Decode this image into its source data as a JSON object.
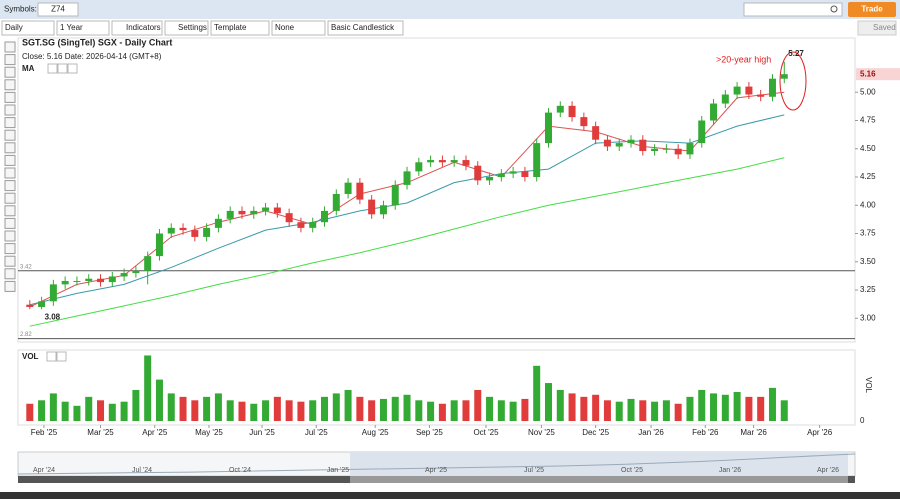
{
  "toolbar": {
    "symbols_label": "Symbols:",
    "symbol": "Z74",
    "trade": "Trade",
    "interval": "Daily",
    "range": "1 Year",
    "indicators": "Indicators",
    "settings": "Settings",
    "template": "Template",
    "none": "None",
    "chart_style": "Basic Candlestick",
    "saved": "Saved"
  },
  "chart_data": [
    {
      "type": "candlestick",
      "title": "SGT.SG (SingTel) SGX - Daily Chart",
      "info": "Close: 5.16  Date: 2026-04-14 (GMT+8)",
      "indicator_label": "MA",
      "x": [
        0,
        1,
        2,
        3,
        4,
        5,
        6,
        7,
        8,
        9,
        10,
        11,
        12,
        13,
        14,
        15,
        16,
        17,
        18,
        19,
        20,
        21,
        22,
        23,
        24,
        25,
        26,
        27,
        28,
        29,
        30,
        31,
        32,
        33,
        34,
        35,
        36,
        37,
        38,
        39,
        40,
        41,
        42,
        43,
        44,
        45,
        46,
        47,
        48,
        49,
        50,
        51,
        52,
        53,
        54,
        55,
        56,
        57,
        58,
        59,
        60,
        61,
        62,
        63,
        64
      ],
      "open": [
        3.12,
        3.1,
        3.15,
        3.3,
        3.33,
        3.33,
        3.35,
        3.32,
        3.37,
        3.4,
        3.42,
        3.55,
        3.75,
        3.8,
        3.78,
        3.72,
        3.8,
        3.88,
        3.95,
        3.92,
        3.95,
        3.98,
        3.93,
        3.85,
        3.8,
        3.85,
        3.95,
        4.1,
        4.2,
        4.05,
        3.92,
        4.0,
        4.18,
        4.3,
        4.38,
        4.4,
        4.38,
        4.4,
        4.35,
        4.22,
        4.25,
        4.28,
        4.3,
        4.25,
        4.55,
        4.82,
        4.88,
        4.78,
        4.7,
        4.58,
        4.52,
        4.55,
        4.58,
        4.48,
        4.5,
        4.5,
        4.45,
        4.55,
        4.75,
        4.9,
        4.98,
        5.05,
        4.98,
        4.96,
        5.12
      ],
      "high": [
        3.16,
        3.19,
        3.34,
        3.37,
        3.37,
        3.39,
        3.39,
        3.41,
        3.44,
        3.46,
        3.59,
        3.79,
        3.84,
        3.84,
        3.82,
        3.84,
        3.92,
        3.99,
        3.99,
        3.99,
        4.02,
        4.02,
        3.97,
        3.89,
        3.89,
        3.99,
        4.14,
        4.24,
        4.24,
        4.09,
        4.04,
        4.22,
        4.34,
        4.42,
        4.44,
        4.44,
        4.44,
        4.44,
        4.39,
        4.29,
        4.32,
        4.34,
        4.34,
        4.59,
        4.86,
        4.92,
        4.92,
        4.82,
        4.74,
        4.62,
        4.59,
        4.62,
        4.62,
        4.54,
        4.54,
        4.54,
        4.59,
        4.79,
        4.94,
        5.02,
        5.09,
        5.09,
        5.02,
        5.16,
        5.27
      ],
      "low": [
        3.08,
        3.08,
        3.11,
        3.26,
        3.29,
        3.29,
        3.28,
        3.28,
        3.33,
        3.36,
        3.3,
        3.51,
        3.71,
        3.74,
        3.68,
        3.68,
        3.76,
        3.84,
        3.88,
        3.88,
        3.91,
        3.89,
        3.81,
        3.76,
        3.76,
        3.81,
        3.91,
        4.06,
        4.01,
        3.88,
        3.88,
        3.96,
        4.14,
        4.26,
        4.34,
        4.34,
        4.34,
        4.31,
        4.18,
        4.18,
        4.21,
        4.24,
        4.21,
        4.21,
        4.51,
        4.78,
        4.74,
        4.66,
        4.54,
        4.48,
        4.48,
        4.51,
        4.44,
        4.44,
        4.46,
        4.41,
        4.41,
        4.51,
        4.71,
        4.86,
        4.94,
        4.94,
        4.92,
        4.92,
        5.08
      ],
      "close": [
        3.1,
        3.15,
        3.3,
        3.33,
        3.33,
        3.35,
        3.32,
        3.37,
        3.4,
        3.42,
        3.55,
        3.75,
        3.8,
        3.78,
        3.72,
        3.8,
        3.88,
        3.95,
        3.92,
        3.95,
        3.98,
        3.93,
        3.85,
        3.8,
        3.85,
        3.95,
        4.1,
        4.2,
        4.05,
        3.92,
        4.0,
        4.18,
        4.3,
        4.38,
        4.4,
        4.38,
        4.4,
        4.35,
        4.22,
        4.25,
        4.28,
        4.3,
        4.25,
        4.55,
        4.82,
        4.88,
        4.78,
        4.7,
        4.58,
        4.52,
        4.55,
        4.58,
        4.48,
        4.5,
        4.5,
        4.45,
        4.55,
        4.75,
        4.9,
        4.98,
        5.05,
        4.98,
        4.96,
        5.12,
        5.16
      ],
      "up_color": "#33aa33",
      "down_color": "#e03c3c",
      "series": [
        {
          "color": "#d9534f",
          "x": [
            0,
            4,
            8,
            12,
            16,
            20,
            24,
            28,
            32,
            36,
            40,
            44,
            48,
            52,
            56,
            60,
            64
          ],
          "values": [
            3.1,
            3.3,
            3.38,
            3.72,
            3.85,
            3.95,
            3.83,
            4.1,
            4.2,
            4.38,
            4.25,
            4.7,
            4.65,
            4.52,
            4.48,
            4.95,
            5.0
          ]
        },
        {
          "color": "#3a9ba8",
          "x": [
            0,
            4,
            8,
            12,
            16,
            20,
            24,
            28,
            32,
            36,
            40,
            44,
            48,
            52,
            56,
            60,
            64
          ],
          "values": [
            3.12,
            3.22,
            3.3,
            3.45,
            3.62,
            3.78,
            3.85,
            3.95,
            4.02,
            4.2,
            4.28,
            4.32,
            4.55,
            4.57,
            4.55,
            4.7,
            4.8
          ]
        },
        {
          "color": "#44dd44",
          "x": [
            0,
            4,
            8,
            12,
            16,
            20,
            24,
            28,
            32,
            36,
            40,
            44,
            48,
            52,
            56,
            60,
            64
          ],
          "values": [
            2.93,
            3.02,
            3.11,
            3.2,
            3.3,
            3.39,
            3.49,
            3.58,
            3.68,
            3.79,
            3.9,
            4.0,
            4.08,
            4.16,
            4.24,
            4.32,
            4.42
          ]
        }
      ],
      "xlim": [
        -1,
        70
      ],
      "xticks": [
        {
          "value": 1.2,
          "label": "Feb '25"
        },
        {
          "value": 6.0,
          "label": "Mar '25"
        },
        {
          "value": 10.6,
          "label": "Apr '25"
        },
        {
          "value": 15.2,
          "label": "May '25"
        },
        {
          "value": 19.7,
          "label": "Jun '25"
        },
        {
          "value": 24.3,
          "label": "Jul '25"
        },
        {
          "value": 29.3,
          "label": "Aug '25"
        },
        {
          "value": 33.9,
          "label": "Sep '25"
        },
        {
          "value": 38.7,
          "label": "Oct '25"
        },
        {
          "value": 43.4,
          "label": "Nov '25"
        },
        {
          "value": 48.0,
          "label": "Dec '25"
        },
        {
          "value": 52.7,
          "label": "Jan '26"
        },
        {
          "value": 57.3,
          "label": "Feb '26"
        },
        {
          "value": 61.4,
          "label": "Mar '26"
        },
        {
          "value": 67.0,
          "label": "Apr '26"
        }
      ],
      "ylim": [
        2.79,
        5.48
      ],
      "yticks": [
        {
          "value": 3,
          "label": "3.00"
        },
        3.25,
        {
          "value": 3.5,
          "label": "3.50"
        },
        3.75,
        {
          "value": 4,
          "label": "4.00"
        },
        4.25,
        {
          "value": 4.5,
          "label": "4.50"
        },
        4.75,
        {
          "value": 5,
          "label": "5.00"
        }
      ],
      "hlines": [
        3.42,
        2.82
      ],
      "high_label": 5.27,
      "low_label": 3.08,
      "last_price": 5.16,
      "annotation": ">20-year high",
      "annotation_color": "#e02020"
    },
    {
      "type": "bar",
      "title": "VOL",
      "axis_label": "VOL",
      "values": [
        25,
        30,
        40,
        28,
        22,
        35,
        30,
        25,
        28,
        45,
        95,
        60,
        40,
        35,
        30,
        35,
        40,
        30,
        28,
        25,
        30,
        35,
        30,
        28,
        30,
        35,
        40,
        45,
        35,
        30,
        32,
        35,
        38,
        30,
        28,
        25,
        30,
        30,
        45,
        35,
        30,
        28,
        32,
        80,
        55,
        45,
        40,
        35,
        38,
        30,
        28,
        32,
        30,
        28,
        30,
        25,
        35,
        45,
        40,
        38,
        42,
        35,
        35,
        48,
        30
      ],
      "ylim": [
        0,
        100
      ],
      "yticks": [
        0
      ]
    }
  ],
  "navigator": {
    "labels": [
      "Apr '24",
      "Jul '24",
      "Oct '24",
      "Jan '25",
      "Apr '25",
      "Jul '25",
      "Oct '25",
      "Jan '26",
      "Apr '26"
    ]
  }
}
